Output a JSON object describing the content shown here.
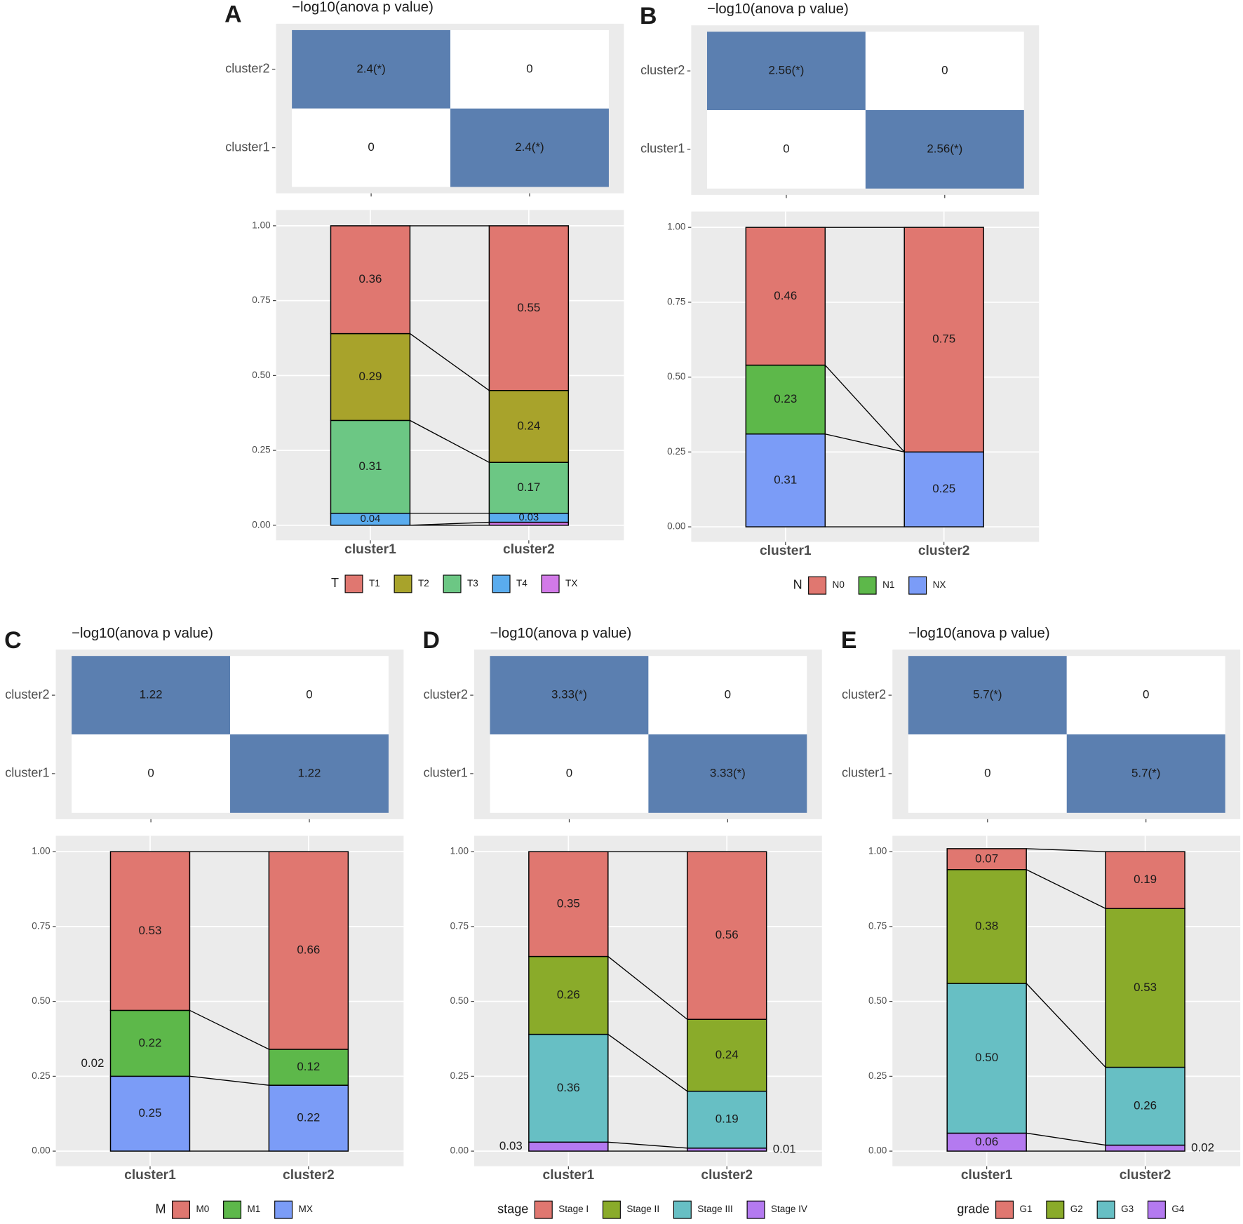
{
  "chart_data": [
    {
      "type": "stacked_bar",
      "panel": "A",
      "heatmap": {
        "title": "−log10(anova p value)",
        "rows": [
          "cluster2",
          "cluster1"
        ],
        "color": "#5b7fb0",
        "values": [
          [
            2.4,
            0
          ],
          [
            0,
            2.4
          ]
        ],
        "value_labels": [
          [
            "2.4(*)",
            "0"
          ],
          [
            "0",
            "2.4(*)"
          ]
        ]
      },
      "categories": [
        "cluster1",
        "cluster2"
      ],
      "legend_title": "T",
      "small_labels": "inside",
      "series": [
        {
          "name": "T1",
          "color": "#e07770",
          "values": [
            0.36,
            0.55
          ],
          "value_labels": [
            "0.36",
            "0.55"
          ]
        },
        {
          "name": "T2",
          "color": "#a8a32b",
          "values": [
            0.29,
            0.24
          ],
          "value_labels": [
            "0.29",
            "0.24"
          ]
        },
        {
          "name": "T3",
          "color": "#6cc784",
          "values": [
            0.31,
            0.17
          ],
          "value_labels": [
            "0.31",
            "0.17"
          ]
        },
        {
          "name": "T4",
          "color": "#5aacee",
          "values": [
            0.04,
            0.03
          ],
          "value_labels": [
            "0.04",
            "0.03"
          ]
        },
        {
          "name": "TX",
          "color": "#d27ae8",
          "values": [
            0,
            0.01
          ],
          "value_labels": [
            null,
            null
          ]
        }
      ],
      "ylim": [
        0,
        1
      ],
      "yticks": [
        {
          "value": 0,
          "label": "0.00"
        },
        {
          "value": 0.25,
          "label": "0.25"
        },
        {
          "value": 0.5,
          "label": "0.50"
        },
        {
          "value": 0.75,
          "label": "0.75"
        },
        {
          "value": 1,
          "label": "1.00"
        }
      ]
    },
    {
      "type": "stacked_bar",
      "panel": "B",
      "heatmap": {
        "title": "−log10(anova p value)",
        "rows": [
          "cluster2",
          "cluster1"
        ],
        "color": "#5b7fb0",
        "values": [
          [
            2.56,
            0
          ],
          [
            0,
            2.56
          ]
        ],
        "value_labels": [
          [
            "2.56(*)",
            "0"
          ],
          [
            "0",
            "2.56(*)"
          ]
        ]
      },
      "categories": [
        "cluster1",
        "cluster2"
      ],
      "legend_title": "N",
      "small_labels": "inside",
      "series": [
        {
          "name": "N0",
          "color": "#e07770",
          "values": [
            0.46,
            0.75
          ],
          "value_labels": [
            "0.46",
            "0.75"
          ]
        },
        {
          "name": "N1",
          "color": "#5db84a",
          "values": [
            0.23,
            0
          ],
          "value_labels": [
            "0.23",
            null
          ]
        },
        {
          "name": "NX",
          "color": "#7b9cf7",
          "values": [
            0.31,
            0.25
          ],
          "value_labels": [
            "0.31",
            "0.25"
          ]
        }
      ],
      "ylim": [
        0,
        1
      ],
      "yticks": [
        {
          "value": 0,
          "label": "0.00"
        },
        {
          "value": 0.25,
          "label": "0.25"
        },
        {
          "value": 0.5,
          "label": "0.50"
        },
        {
          "value": 0.75,
          "label": "0.75"
        },
        {
          "value": 1,
          "label": "1.00"
        }
      ]
    },
    {
      "type": "stacked_bar",
      "panel": "C",
      "heatmap": {
        "title": "−log10(anova p value)",
        "rows": [
          "cluster2",
          "cluster1"
        ],
        "color": "#5b7fb0",
        "values": [
          [
            1.22,
            0
          ],
          [
            0,
            1.22
          ]
        ],
        "value_labels": [
          [
            "1.22",
            "0"
          ],
          [
            "0",
            "1.22"
          ]
        ]
      },
      "categories": [
        "cluster1",
        "cluster2"
      ],
      "legend_title": "M",
      "small_labels": "outside",
      "annotation": "0.02",
      "series": [
        {
          "name": "M0",
          "color": "#e07770",
          "values": [
            0.53,
            0.66
          ],
          "value_labels": [
            "0.53",
            "0.66"
          ]
        },
        {
          "name": "M1",
          "color": "#5db84a",
          "values": [
            0.22,
            0.12
          ],
          "value_labels": [
            "0.22",
            "0.12"
          ]
        },
        {
          "name": "MX",
          "color": "#7b9cf7",
          "values": [
            0.25,
            0.22
          ],
          "value_labels": [
            "0.25",
            "0.22"
          ]
        }
      ],
      "ylim": [
        0,
        1
      ],
      "yticks": [
        {
          "value": 0,
          "label": "0.00"
        },
        {
          "value": 0.25,
          "label": "0.25"
        },
        {
          "value": 0.5,
          "label": "0.50"
        },
        {
          "value": 0.75,
          "label": "0.75"
        },
        {
          "value": 1,
          "label": "1.00"
        }
      ]
    },
    {
      "type": "stacked_bar",
      "panel": "D",
      "heatmap": {
        "title": "−log10(anova p value)",
        "rows": [
          "cluster2",
          "cluster1"
        ],
        "color": "#5b7fb0",
        "values": [
          [
            3.33,
            0
          ],
          [
            0,
            3.33
          ]
        ],
        "value_labels": [
          [
            "3.33(*)",
            "0"
          ],
          [
            "0",
            "3.33(*)"
          ]
        ]
      },
      "categories": [
        "cluster1",
        "cluster2"
      ],
      "legend_title": "stage",
      "small_labels": "outside",
      "series": [
        {
          "name": "Stage I",
          "color": "#e07770",
          "values": [
            0.35,
            0.56
          ],
          "value_labels": [
            "0.35",
            "0.56"
          ]
        },
        {
          "name": "Stage II",
          "color": "#8aab2a",
          "values": [
            0.26,
            0.24
          ],
          "value_labels": [
            "0.26",
            "0.24"
          ]
        },
        {
          "name": "Stage III",
          "color": "#67bfc4",
          "values": [
            0.36,
            0.19
          ],
          "value_labels": [
            "0.36",
            "0.19"
          ]
        },
        {
          "name": "Stage IV",
          "color": "#b47af0",
          "values": [
            0.03,
            0.01
          ],
          "value_labels": [
            "0.03",
            "0.01"
          ]
        }
      ],
      "ylim": [
        0,
        1
      ],
      "yticks": [
        {
          "value": 0,
          "label": "0.00"
        },
        {
          "value": 0.25,
          "label": "0.25"
        },
        {
          "value": 0.5,
          "label": "0.50"
        },
        {
          "value": 0.75,
          "label": "0.75"
        },
        {
          "value": 1,
          "label": "1.00"
        }
      ]
    },
    {
      "type": "stacked_bar",
      "panel": "E",
      "heatmap": {
        "title": "−log10(anova p value)",
        "rows": [
          "cluster2",
          "cluster1"
        ],
        "color": "#5b7fb0",
        "values": [
          [
            5.7,
            0
          ],
          [
            0,
            5.7
          ]
        ],
        "value_labels": [
          [
            "5.7(*)",
            "0"
          ],
          [
            "0",
            "5.7(*)"
          ]
        ]
      },
      "categories": [
        "cluster1",
        "cluster2"
      ],
      "legend_title": "grade",
      "small_labels": "outside",
      "series": [
        {
          "name": "G1",
          "color": "#e07770",
          "values": [
            0.07,
            0.19
          ],
          "value_labels": [
            "0.07",
            "0.19"
          ]
        },
        {
          "name": "G2",
          "color": "#8aab2a",
          "values": [
            0.38,
            0.53
          ],
          "value_labels": [
            "0.38",
            "0.53"
          ]
        },
        {
          "name": "G3",
          "color": "#67bfc4",
          "values": [
            0.5,
            0.26
          ],
          "value_labels": [
            "0.50",
            "0.26"
          ]
        },
        {
          "name": "G4",
          "color": "#b47af0",
          "values": [
            0.06,
            0.02
          ],
          "value_labels": [
            "0.06",
            "0.02"
          ]
        }
      ],
      "ylim": [
        0,
        1
      ],
      "yticks": [
        {
          "value": 0,
          "label": "0.00"
        },
        {
          "value": 0.25,
          "label": "0.25"
        },
        {
          "value": 0.5,
          "label": "0.50"
        },
        {
          "value": 0.75,
          "label": "0.75"
        },
        {
          "value": 1,
          "label": "1.00"
        }
      ]
    }
  ]
}
